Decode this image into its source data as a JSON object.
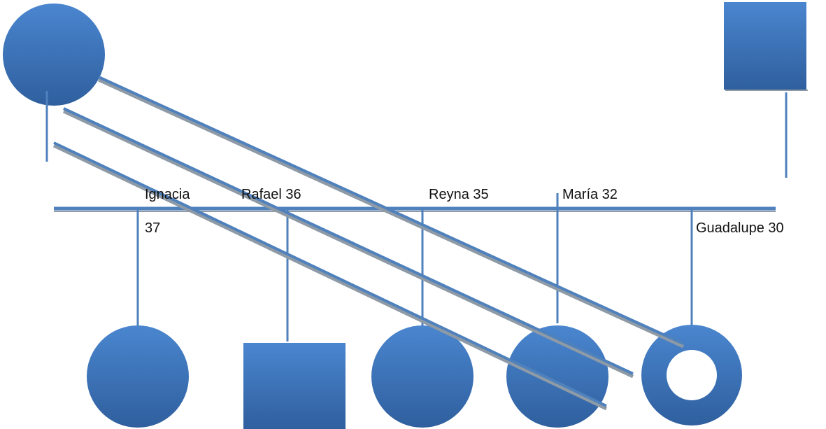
{
  "colors": {
    "fill_top": "#4a86cf",
    "fill_bottom": "#2f5f9e",
    "line": "#4f81bd",
    "shadow": "#8e9aa6",
    "text": "#111111"
  },
  "labels": {
    "ignacia_name": "Ignacia",
    "ignacia_age": "37",
    "rafael": "Rafael 36",
    "reyna": "Reyna 35",
    "maria": "María 32",
    "guadalupe": "Guadalupe 30"
  },
  "parents": [
    {
      "shape": "circle",
      "icon": "female-symbol"
    },
    {
      "shape": "square",
      "icon": "male-symbol"
    }
  ],
  "children": [
    {
      "shape": "circle",
      "icon": "female-symbol"
    },
    {
      "shape": "square",
      "icon": "male-symbol"
    },
    {
      "shape": "circle",
      "icon": "female-symbol"
    },
    {
      "shape": "circle",
      "icon": "female-symbol"
    },
    {
      "shape": "ring",
      "icon": "female-symbol-hollow"
    }
  ]
}
